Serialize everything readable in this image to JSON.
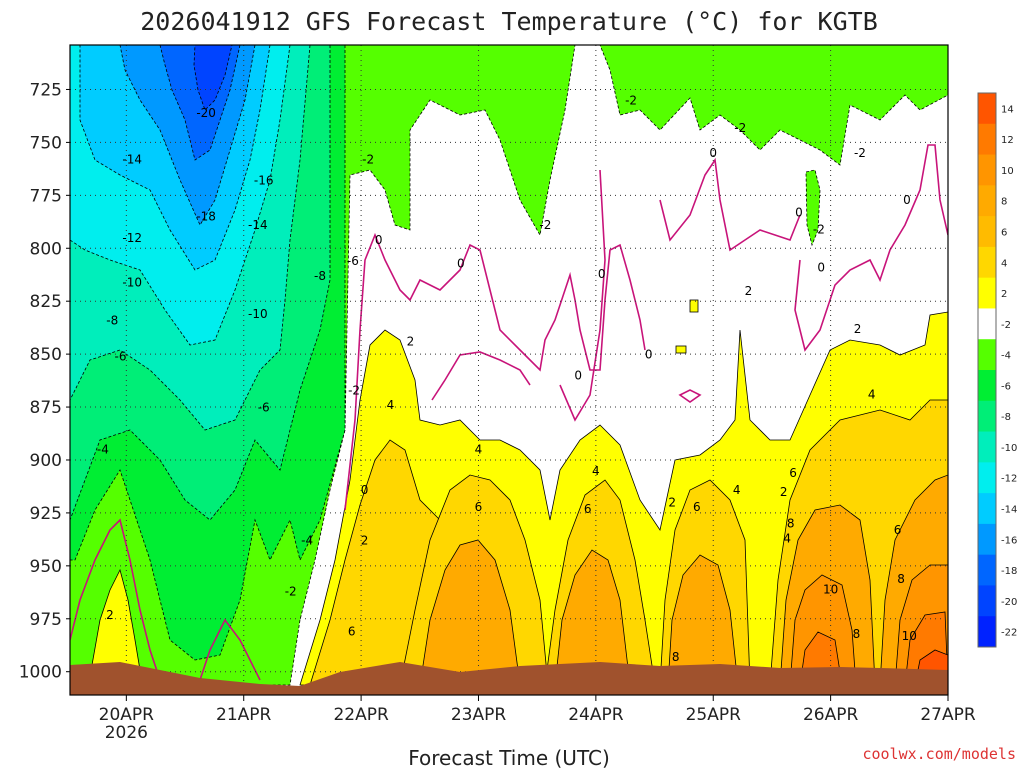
{
  "chart_data": {
    "type": "heatmap",
    "title": "2026041912 GFS Forecast Temperature (°C) for KGTB",
    "xlabel": "Forecast Time (UTC)",
    "ylabel": "",
    "credit": "coolwx.com/models",
    "x_ticks": [
      {
        "label": "20APR",
        "sublabel": "2026"
      },
      {
        "label": "21APR",
        "sublabel": ""
      },
      {
        "label": "22APR",
        "sublabel": ""
      },
      {
        "label": "23APR",
        "sublabel": ""
      },
      {
        "label": "24APR",
        "sublabel": ""
      },
      {
        "label": "25APR",
        "sublabel": ""
      },
      {
        "label": "26APR",
        "sublabel": ""
      },
      {
        "label": "27APR",
        "sublabel": ""
      }
    ],
    "y_ticks": [
      "725",
      "750",
      "775",
      "800",
      "825",
      "850",
      "875",
      "900",
      "925",
      "950",
      "975",
      "1000"
    ],
    "ylim": [
      1011,
      704
    ],
    "xlim_days": [
      -0.48,
      7.0
    ],
    "colorbar": {
      "labels": [
        "14",
        "12",
        "10",
        "8",
        "6",
        "4",
        "2",
        "-2",
        "-4",
        "-6",
        "-8",
        "-10",
        "-12",
        "-14",
        "-16",
        "-18",
        "-20",
        "-22"
      ],
      "colors": [
        "#ff5500",
        "#ff7a00",
        "#ff9500",
        "#ffaa00",
        "#ffbb00",
        "#ffd700",
        "#ffff00",
        "#ffffff",
        "#55ff00",
        "#00ee33",
        "#00ee77",
        "#00eebb",
        "#00eeee",
        "#00ccff",
        "#0099ff",
        "#0066ff",
        "#0044ff",
        "#0022ff"
      ]
    },
    "contour_labels": [
      {
        "text": "-20",
        "day": 0.68,
        "p": 738
      },
      {
        "text": "-14",
        "day": 0.05,
        "p": 760
      },
      {
        "text": "-16",
        "day": 1.17,
        "p": 770
      },
      {
        "text": "-18",
        "day": 0.68,
        "p": 787
      },
      {
        "text": "-14",
        "day": 1.12,
        "p": 791
      },
      {
        "text": "-12",
        "day": 0.05,
        "p": 797
      },
      {
        "text": "-10",
        "day": 0.05,
        "p": 818
      },
      {
        "text": "-8",
        "day": -0.12,
        "p": 836
      },
      {
        "text": "-10",
        "day": 1.12,
        "p": 833
      },
      {
        "text": "-8",
        "day": 1.65,
        "p": 815
      },
      {
        "text": "-6",
        "day": 1.93,
        "p": 808
      },
      {
        "text": "-6",
        "day": -0.05,
        "p": 853
      },
      {
        "text": "-6",
        "day": 1.17,
        "p": 877
      },
      {
        "text": "-4",
        "day": -0.2,
        "p": 897
      },
      {
        "text": "-4",
        "day": 1.54,
        "p": 940
      },
      {
        "text": "-2",
        "day": 1.4,
        "p": 964
      },
      {
        "text": "-2",
        "day": 2.06,
        "p": 760
      },
      {
        "text": "-2",
        "day": 1.94,
        "p": 869
      },
      {
        "text": "0",
        "day": 2.15,
        "p": 798
      },
      {
        "text": "0",
        "day": 2.85,
        "p": 809
      },
      {
        "text": "0",
        "day": 3.85,
        "p": 862
      },
      {
        "text": "0",
        "day": 4.05,
        "p": 814
      },
      {
        "text": "0",
        "day": 4.45,
        "p": 852
      },
      {
        "text": "0",
        "day": 5.0,
        "p": 757
      },
      {
        "text": "0",
        "day": 5.73,
        "p": 785
      },
      {
        "text": "0",
        "day": 5.92,
        "p": 811
      },
      {
        "text": "0",
        "day": 6.65,
        "p": 779
      },
      {
        "text": "0",
        "day": 2.03,
        "p": 916
      },
      {
        "text": "-2",
        "day": 3.57,
        "p": 791
      },
      {
        "text": "-2",
        "day": 4.3,
        "p": 732
      },
      {
        "text": "-2",
        "day": 5.23,
        "p": 745
      },
      {
        "text": "-2",
        "day": 5.9,
        "p": 793
      },
      {
        "text": "-2",
        "day": 6.25,
        "p": 757
      },
      {
        "text": "2",
        "day": 2.42,
        "p": 846
      },
      {
        "text": "2",
        "day": 2.03,
        "p": 940
      },
      {
        "text": "2",
        "day": -0.14,
        "p": 975
      },
      {
        "text": "2",
        "day": 4.65,
        "p": 922
      },
      {
        "text": "2",
        "day": 5.3,
        "p": 822
      },
      {
        "text": "2",
        "day": 5.6,
        "p": 917
      },
      {
        "text": "2",
        "day": 6.23,
        "p": 840
      },
      {
        "text": "4",
        "day": 2.25,
        "p": 876
      },
      {
        "text": "4",
        "day": 3.0,
        "p": 897
      },
      {
        "text": "4",
        "day": 4.0,
        "p": 907
      },
      {
        "text": "4",
        "day": 5.2,
        "p": 916
      },
      {
        "text": "4",
        "day": 5.63,
        "p": 939
      },
      {
        "text": "4",
        "day": 6.35,
        "p": 871
      },
      {
        "text": "6",
        "day": 3.0,
        "p": 924
      },
      {
        "text": "6",
        "day": 3.93,
        "p": 925
      },
      {
        "text": "6",
        "day": 4.86,
        "p": 924
      },
      {
        "text": "6",
        "day": 5.68,
        "p": 908
      },
      {
        "text": "6",
        "day": 6.57,
        "p": 935
      },
      {
        "text": "6",
        "day": 1.92,
        "p": 983
      },
      {
        "text": "8",
        "day": 5.66,
        "p": 932
      },
      {
        "text": "8",
        "day": 6.6,
        "p": 958
      },
      {
        "text": "8",
        "day": 4.68,
        "p": 995
      },
      {
        "text": "8",
        "day": 6.22,
        "p": 984
      },
      {
        "text": "10",
        "day": 6.0,
        "p": 963
      },
      {
        "text": "10",
        "day": 6.67,
        "p": 985
      }
    ]
  }
}
